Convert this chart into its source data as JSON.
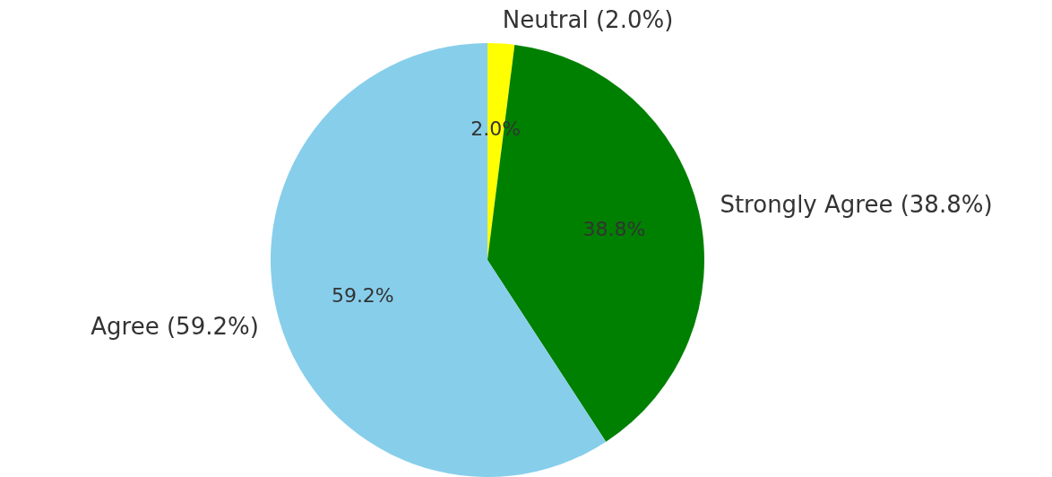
{
  "chart_data": {
    "type": "pie",
    "categories": [
      "Neutral (2.0%)",
      "Strongly Agree (38.8%)",
      "Agree (59.2%)"
    ],
    "values": [
      2.0,
      38.8,
      59.2
    ],
    "colors": [
      "#ffff00",
      "#008000",
      "#87ceeb"
    ],
    "value_labels": [
      "2.0%",
      "38.8%",
      "59.2%"
    ],
    "legend": false
  }
}
